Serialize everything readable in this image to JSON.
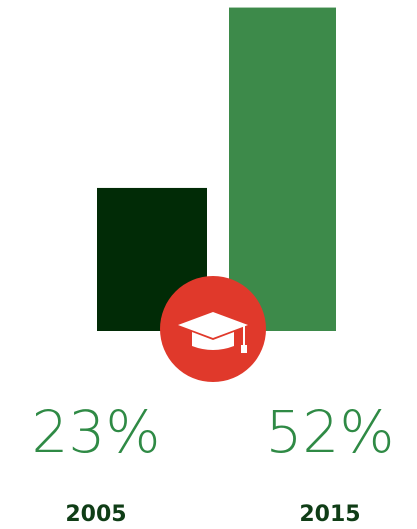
{
  "chart_data": {
    "type": "bar",
    "categories": [
      "2005",
      "2015"
    ],
    "values": [
      23,
      52
    ],
    "value_labels": [
      "23%",
      "52%"
    ],
    "colors": [
      "#012b06",
      "#3d8a4a"
    ]
  }
}
